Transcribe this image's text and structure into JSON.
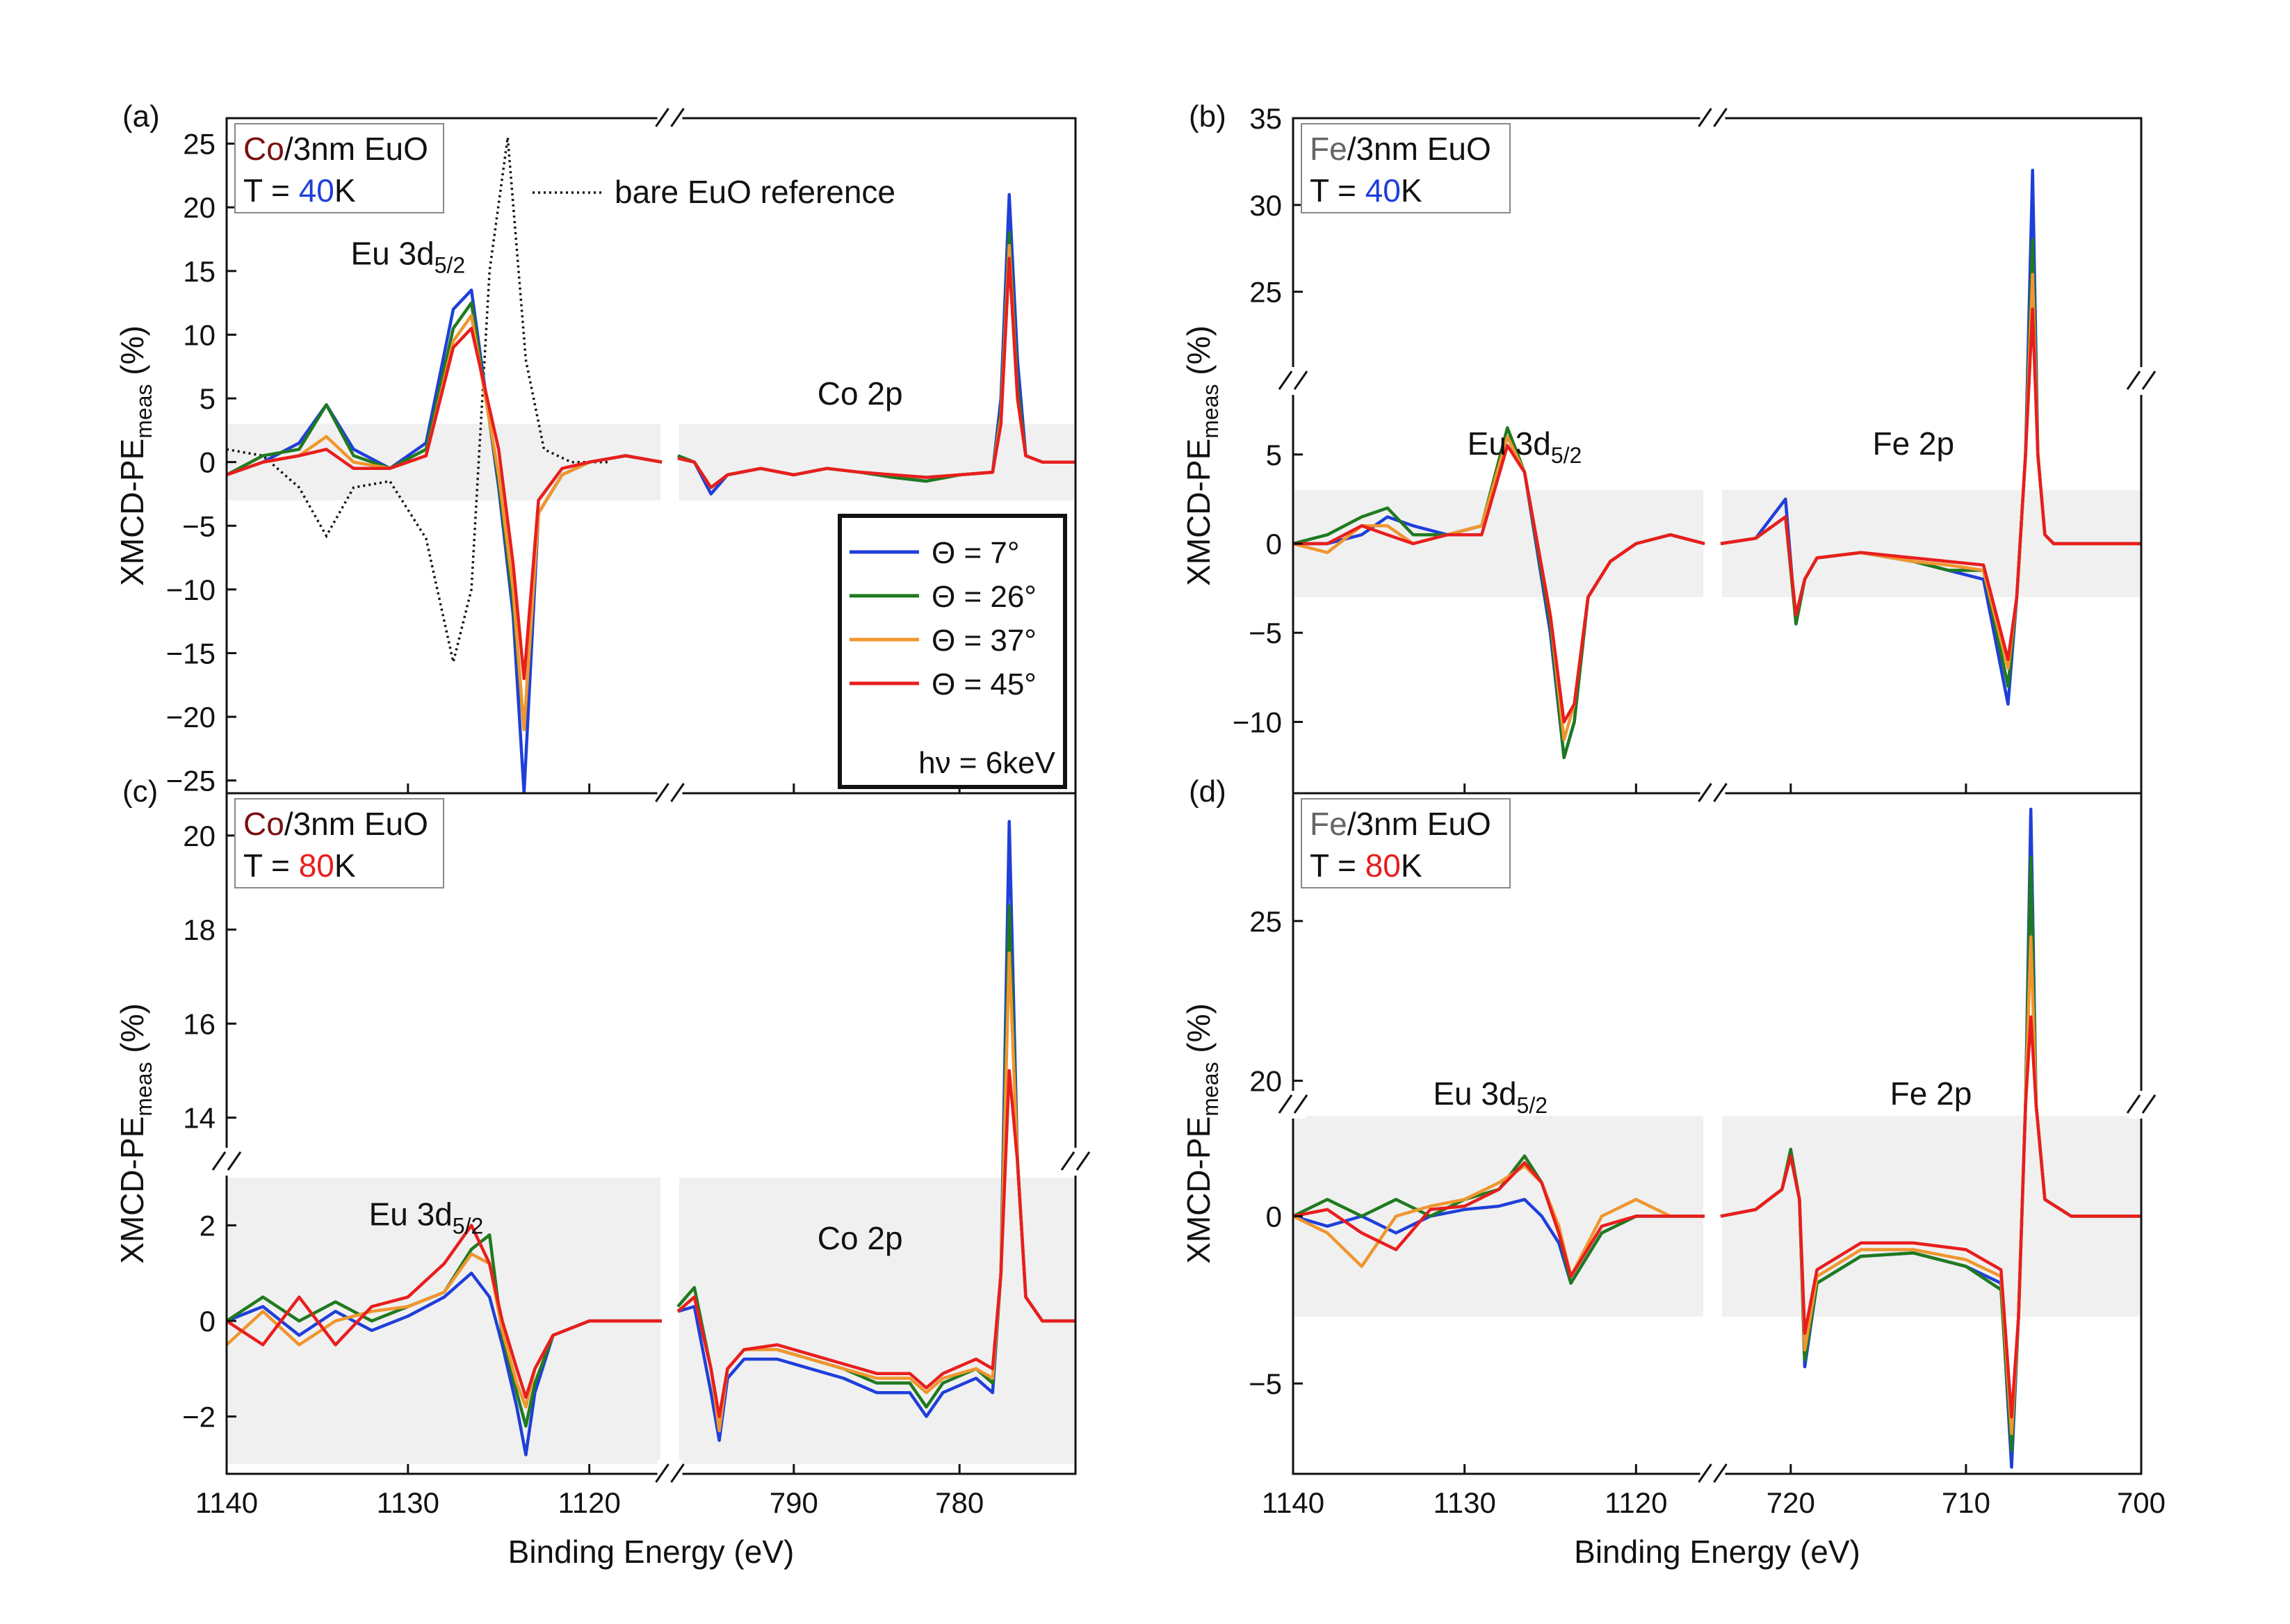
{
  "figure": {
    "xlabel": "Binding Energy (eV)",
    "ylabel_main": "XMCD-PE",
    "ylabel_sub": "meas",
    "ylabel_unit": " (%)"
  },
  "legend": {
    "entries": [
      {
        "label": "Θ = 7°",
        "color": "#1f3fd9"
      },
      {
        "label": "Θ = 26°",
        "color": "#1f7a1f"
      },
      {
        "label": "Θ = 37°",
        "color": "#f0962e"
      },
      {
        "label": "Θ = 45°",
        "color": "#e81e1e"
      }
    ],
    "hv_label": "hν = 6keV"
  },
  "reference_label": "bare EuO reference",
  "chart_data": [
    {
      "type": "line",
      "panel": "(a)",
      "title": "Co/3nm EuO",
      "metal": "Co",
      "metal_color": "#7a1010",
      "sample_rest": "/3nm EuO",
      "temperature_prefix": "T = ",
      "temperature": "40",
      "temperature_color": "#1f3fd9",
      "temperature_unit": "K",
      "xlabel": "Binding Energy (eV)",
      "ylabel": "XMCD-PE meas (%)",
      "xlim_left": [
        1140,
        1116
      ],
      "xlim_right": [
        797,
        773
      ],
      "ylim": [
        -26,
        27
      ],
      "yticks": [
        -25,
        -20,
        -15,
        -10,
        -5,
        0,
        5,
        10,
        15,
        20,
        25
      ],
      "shaded_band": [
        -3,
        3
      ],
      "peak_labels": [
        "Eu 3d5/2",
        "Co 2p"
      ],
      "reference_curve": {
        "name": "bare EuO reference",
        "x": [
          1140,
          1138,
          1136,
          1134.5,
          1133,
          1131,
          1129,
          1127.5,
          1126.5,
          1125.5,
          1124.5,
          1123.5,
          1122.5,
          1121,
          1119
        ],
        "y": [
          1,
          0.5,
          -2,
          -5.8,
          -2,
          -1.5,
          -6,
          -15.7,
          -10,
          15,
          25.5,
          8,
          1,
          0,
          0
        ]
      },
      "series_left_x": [
        1140,
        1138,
        1136,
        1134.5,
        1133,
        1131,
        1129,
        1127.5,
        1126.5,
        1125,
        1124.2,
        1123.6,
        1122.8,
        1121.5,
        1120,
        1118,
        1116
      ],
      "series_right_x": [
        797,
        796,
        795,
        794,
        792,
        790,
        788,
        786,
        784,
        782,
        780,
        778,
        777.5,
        777,
        776.5,
        776,
        775,
        774,
        773
      ],
      "series": [
        {
          "name": "Θ = 7°",
          "color": "#1f3fd9",
          "left": [
            -1,
            0,
            1.5,
            4.5,
            1,
            -0.5,
            1.5,
            12,
            13.5,
            -2,
            -12,
            -26,
            -4,
            -1,
            0,
            0.5,
            0
          ],
          "right": [
            0.5,
            0,
            -2.5,
            -1,
            -0.5,
            -1,
            -0.5,
            -0.8,
            -1.2,
            -1.5,
            -1,
            -0.8,
            5,
            21,
            8,
            0.5,
            0,
            0,
            0
          ]
        },
        {
          "name": "Θ = 26°",
          "color": "#1f7a1f",
          "left": [
            -1,
            0.5,
            1,
            4.5,
            0.5,
            -0.5,
            1,
            10.5,
            12.5,
            -1.5,
            -11,
            -21,
            -4,
            -1,
            0,
            0.5,
            0
          ],
          "right": [
            0.5,
            0,
            -2,
            -1,
            -0.5,
            -1,
            -0.5,
            -0.8,
            -1.2,
            -1.5,
            -1,
            -0.8,
            4,
            18,
            6,
            0.5,
            0,
            0,
            0
          ]
        },
        {
          "name": "Θ = 37°",
          "color": "#f0962e",
          "left": [
            -1,
            0,
            0.5,
            2,
            0,
            -0.5,
            0.5,
            9.5,
            11.5,
            -1,
            -10,
            -21,
            -4,
            -1,
            0,
            0.5,
            0
          ],
          "right": [
            0.3,
            0,
            -2,
            -1,
            -0.5,
            -1,
            -0.5,
            -0.8,
            -1,
            -1.2,
            -1,
            -0.8,
            3.5,
            17,
            5,
            0.5,
            0,
            0,
            0
          ]
        },
        {
          "name": "Θ = 45°",
          "color": "#e81e1e",
          "left": [
            -1,
            0,
            0.5,
            1,
            -0.5,
            -0.5,
            0.5,
            9,
            10.5,
            1,
            -8,
            -17,
            -3,
            -0.5,
            0,
            0.5,
            0
          ],
          "right": [
            0.3,
            0,
            -2,
            -1,
            -0.5,
            -1,
            -0.5,
            -0.8,
            -1,
            -1.2,
            -1,
            -0.8,
            3,
            16,
            5,
            0.5,
            0,
            0,
            0
          ]
        }
      ]
    },
    {
      "type": "line",
      "panel": "(b)",
      "title": "Fe/3nm EuO",
      "metal": "Fe",
      "metal_color": "#666666",
      "sample_rest": "/3nm EuO",
      "temperature_prefix": "T = ",
      "temperature": "40",
      "temperature_color": "#1f3fd9",
      "temperature_unit": "K",
      "xlabel": "Binding Energy (eV)",
      "ylabel": "XMCD-PE meas (%)",
      "xlim_left": [
        1140,
        1116
      ],
      "xlim_right": [
        724,
        700
      ],
      "ylim_lower": [
        -14,
        8.5
      ],
      "ylim_upper": [
        20.5,
        35
      ],
      "yticks_lower": [
        -10,
        -5,
        0,
        5
      ],
      "yticks_upper": [
        25,
        30,
        35
      ],
      "shaded_band": [
        -3,
        3
      ],
      "peak_labels": [
        "Eu 3d5/2",
        "Fe 2p"
      ],
      "series_left_x": [
        1140,
        1138,
        1136,
        1134.5,
        1133,
        1131,
        1129,
        1127.5,
        1126.5,
        1125,
        1124.2,
        1123.6,
        1122.8,
        1121.5,
        1120,
        1118,
        1116
      ],
      "series_right_x": [
        724,
        722,
        720.3,
        719.7,
        719.2,
        718.5,
        716,
        713,
        711,
        709,
        707.6,
        707.1,
        706.6,
        706.2,
        705.9,
        705.5,
        705,
        703,
        700
      ],
      "series": [
        {
          "name": "Θ = 7°",
          "color": "#1f3fd9",
          "left": [
            0,
            0,
            0.5,
            1.5,
            1,
            0.5,
            1,
            6,
            4,
            -5,
            -12,
            -10,
            -3,
            -1,
            0,
            0.5,
            0
          ],
          "right": [
            0,
            0.3,
            2.5,
            -4.5,
            -2,
            -0.8,
            -0.5,
            -1,
            -1.5,
            -2,
            -9,
            -3,
            5,
            32,
            5,
            0.5,
            0,
            0,
            0
          ]
        },
        {
          "name": "Θ = 26°",
          "color": "#1f7a1f",
          "left": [
            0,
            0.5,
            1.5,
            2,
            0.5,
            0.5,
            1,
            6.5,
            4,
            -4.5,
            -12,
            -10,
            -3,
            -1,
            0,
            0.5,
            0
          ],
          "right": [
            0,
            0.3,
            1.5,
            -4.5,
            -2,
            -0.8,
            -0.5,
            -1,
            -1.5,
            -1.5,
            -8,
            -3,
            5,
            28,
            5,
            0.5,
            0,
            0,
            0
          ]
        },
        {
          "name": "Θ = 37°",
          "color": "#f0962e",
          "left": [
            0,
            -0.5,
            1,
            1,
            0,
            0.5,
            1,
            6,
            4,
            -4,
            -11,
            -9,
            -3,
            -1,
            0,
            0.5,
            0
          ],
          "right": [
            0,
            0.3,
            1.5,
            -4,
            -2,
            -0.8,
            -0.5,
            -1,
            -1.2,
            -1.5,
            -7,
            -3,
            5,
            26,
            5,
            0.5,
            0,
            0,
            0
          ]
        },
        {
          "name": "Θ = 45°",
          "color": "#e81e1e",
          "left": [
            0,
            0,
            1,
            0.5,
            0,
            0.5,
            0.5,
            5.5,
            4,
            -4,
            -10,
            -9,
            -3,
            -1,
            0,
            0.5,
            0
          ],
          "right": [
            0,
            0.3,
            1.5,
            -4,
            -2,
            -0.8,
            -0.5,
            -0.8,
            -1,
            -1.2,
            -6.5,
            -3,
            5,
            24,
            5,
            0.5,
            0,
            0,
            0
          ]
        }
      ]
    },
    {
      "type": "line",
      "panel": "(c)",
      "title": "Co/3nm EuO",
      "metal": "Co",
      "metal_color": "#7a1010",
      "sample_rest": "/3nm EuO",
      "temperature_prefix": "T = ",
      "temperature": "80",
      "temperature_color": "#e81e1e",
      "temperature_unit": "K",
      "xlabel": "Binding Energy (eV)",
      "ylabel": "XMCD-PE meas (%)",
      "xlim_left": [
        1140,
        1116
      ],
      "xlim_right": [
        797,
        773
      ],
      "ylim_lower": [
        -3.2,
        3.1
      ],
      "ylim_upper": [
        13.3,
        20.9
      ],
      "yticks_lower": [
        -2,
        0,
        2
      ],
      "yticks_upper": [
        14,
        16,
        18,
        20
      ],
      "shaded_band": [
        -3,
        3
      ],
      "peak_labels": [
        "Eu 3d5/2",
        "Co 2p"
      ],
      "series_left_x": [
        1140,
        1138,
        1136,
        1134,
        1132,
        1130,
        1128,
        1126.5,
        1125.5,
        1124.8,
        1124,
        1123.5,
        1123,
        1122,
        1120,
        1118,
        1116
      ],
      "series_right_x": [
        797,
        796,
        795,
        794.5,
        794,
        793,
        791,
        789,
        787,
        785,
        783,
        782,
        781,
        779,
        778,
        777.5,
        777,
        776.5,
        776,
        775,
        774,
        773
      ],
      "series": [
        {
          "name": "Θ = 7°",
          "color": "#1f3fd9",
          "left": [
            0,
            0.3,
            -0.3,
            0.2,
            -0.2,
            0.1,
            0.5,
            1,
            0.5,
            -0.5,
            -1.8,
            -2.8,
            -1.5,
            -0.3,
            0,
            0,
            0
          ],
          "right": [
            0.2,
            0.3,
            -1.5,
            -2.5,
            -1.2,
            -0.8,
            -0.8,
            -1,
            -1.2,
            -1.5,
            -1.5,
            -2,
            -1.5,
            -1.2,
            -1.5,
            1,
            20.3,
            6,
            0.5,
            0,
            0,
            0
          ]
        },
        {
          "name": "Θ = 26°",
          "color": "#1f7a1f",
          "left": [
            0,
            0.5,
            0,
            0.4,
            0,
            0.3,
            0.6,
            1.5,
            1.8,
            -0.3,
            -1.5,
            -2.2,
            -1.3,
            -0.3,
            0,
            0,
            0
          ],
          "right": [
            0.3,
            0.7,
            -1,
            -2.2,
            -1,
            -0.6,
            -0.6,
            -0.8,
            -1,
            -1.3,
            -1.3,
            -1.8,
            -1.3,
            -1,
            -1.3,
            1,
            18.5,
            6,
            0.5,
            0,
            0,
            0
          ]
        },
        {
          "name": "Θ = 37°",
          "color": "#f0962e",
          "left": [
            -0.5,
            0.2,
            -0.5,
            0,
            0.2,
            0.3,
            0.6,
            1.4,
            1.2,
            -0.2,
            -1.3,
            -1.8,
            -1,
            -0.3,
            0,
            0,
            0
          ],
          "right": [
            0.2,
            0.5,
            -1,
            -2.3,
            -1,
            -0.6,
            -0.6,
            -0.8,
            -1,
            -1.2,
            -1.2,
            -1.5,
            -1.2,
            -1,
            -1.2,
            1,
            17.5,
            6,
            0.5,
            0,
            0,
            0
          ]
        },
        {
          "name": "Θ = 45°",
          "color": "#e81e1e",
          "left": [
            0,
            -0.5,
            0.5,
            -0.5,
            0.3,
            0.5,
            1.2,
            2,
            1.2,
            0,
            -1,
            -1.6,
            -1,
            -0.3,
            0,
            0,
            0
          ],
          "right": [
            0.2,
            0.5,
            -1,
            -2,
            -1,
            -0.6,
            -0.5,
            -0.7,
            -0.9,
            -1.1,
            -1.1,
            -1.4,
            -1.1,
            -0.8,
            -1,
            1,
            15,
            6,
            0.5,
            0,
            0,
            0
          ]
        }
      ]
    },
    {
      "type": "line",
      "panel": "(d)",
      "title": "Fe/3nm EuO",
      "metal": "Fe",
      "metal_color": "#666666",
      "sample_rest": "/3nm EuO",
      "temperature_prefix": "T = ",
      "temperature": "80",
      "temperature_color": "#e81e1e",
      "temperature_unit": "K",
      "xlabel": "Binding Energy (eV)",
      "ylabel": "XMCD-PE meas (%)",
      "xlim_left": [
        1140,
        1116
      ],
      "xlim_right": [
        724,
        700
      ],
      "ylim_lower": [
        -7.7,
        3
      ],
      "ylim_upper": [
        19.6,
        29
      ],
      "yticks_lower": [
        -5,
        0
      ],
      "yticks_upper": [
        20,
        25
      ],
      "shaded_band": [
        -3,
        3
      ],
      "peak_labels": [
        "Eu 3d5/2",
        "Fe 2p"
      ],
      "series_left_x": [
        1140,
        1138,
        1136,
        1134,
        1132,
        1130,
        1128,
        1126.5,
        1125.5,
        1124.5,
        1123.8,
        1123.2,
        1122,
        1120,
        1118,
        1116
      ],
      "series_right_x": [
        724,
        722,
        720.5,
        720,
        719.5,
        719.2,
        718.5,
        716,
        713,
        710,
        708,
        707.4,
        707,
        706.6,
        706.3,
        706,
        705.5,
        704,
        702,
        700
      ],
      "series": [
        {
          "name": "Θ = 7°",
          "color": "#1f3fd9",
          "left": [
            0,
            -0.3,
            0,
            -0.5,
            0,
            0.2,
            0.3,
            0.5,
            0,
            -0.8,
            -2,
            -1.5,
            -0.5,
            0,
            0,
            0
          ],
          "right": [
            0,
            0.2,
            0.8,
            1.8,
            0.5,
            -4.5,
            -2,
            -1.2,
            -1.1,
            -1.5,
            -2,
            -7.5,
            -3,
            5,
            28.5,
            5,
            0.5,
            0,
            0,
            0
          ]
        },
        {
          "name": "Θ = 26°",
          "color": "#1f7a1f",
          "left": [
            0,
            0.5,
            0,
            0.5,
            0,
            0.5,
            0.8,
            1.8,
            1,
            -0.5,
            -2,
            -1.5,
            -0.5,
            0,
            0,
            0
          ],
          "right": [
            0,
            0.2,
            0.8,
            2,
            0.5,
            -4.3,
            -2,
            -1.2,
            -1.1,
            -1.5,
            -2.2,
            -7,
            -3,
            5,
            27,
            5,
            0.5,
            0,
            0,
            0
          ]
        },
        {
          "name": "Θ = 37°",
          "color": "#f0962e",
          "left": [
            0,
            -0.5,
            -1.5,
            0,
            0.3,
            0.5,
            1,
            1.5,
            1,
            -0.3,
            -1.8,
            -1.2,
            0,
            0.5,
            0,
            0
          ],
          "right": [
            0,
            0.2,
            0.8,
            1.8,
            0.5,
            -4,
            -1.8,
            -1,
            -1,
            -1.3,
            -1.8,
            -6.5,
            -3,
            5,
            24.5,
            5,
            0.5,
            0,
            0,
            0
          ]
        },
        {
          "name": "Θ = 45°",
          "color": "#e81e1e",
          "left": [
            0,
            0.2,
            -0.5,
            -1,
            0.2,
            0.3,
            0.8,
            1.6,
            1,
            -0.5,
            -1.8,
            -1.3,
            -0.3,
            0,
            0,
            0
          ],
          "right": [
            0,
            0.2,
            0.8,
            1.8,
            0.5,
            -3.5,
            -1.6,
            -0.8,
            -0.8,
            -1,
            -1.6,
            -6,
            -3,
            5,
            22,
            5,
            0.5,
            0,
            0,
            0
          ]
        }
      ]
    }
  ]
}
